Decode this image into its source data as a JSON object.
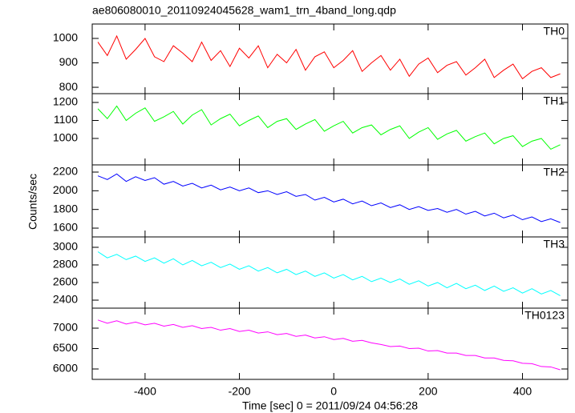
{
  "chart_data": [
    {
      "type": "line",
      "title": "ae806080010_20110924045628_wam1_trn_4band_long.qdp",
      "x": [
        -500,
        -480,
        -460,
        -440,
        -420,
        -400,
        -380,
        -360,
        -340,
        -320,
        -300,
        -280,
        -260,
        -240,
        -220,
        -200,
        -180,
        -160,
        -140,
        -120,
        -100,
        -80,
        -60,
        -40,
        -20,
        0,
        20,
        40,
        60,
        80,
        100,
        120,
        140,
        160,
        180,
        200,
        220,
        240,
        260,
        280,
        300,
        320,
        340,
        360,
        380,
        400,
        420,
        440,
        460,
        480
      ],
      "xlim": [
        -512,
        496
      ],
      "xticks": [
        -400,
        -200,
        0,
        200,
        400
      ],
      "ylim": [
        774,
        1059
      ],
      "yticks": [
        800,
        900,
        1000
      ],
      "series": [
        {
          "name": "TH0",
          "color": "#ff0000",
          "values": [
            985,
            930,
            1010,
            915,
            955,
            1000,
            925,
            905,
            970,
            940,
            905,
            985,
            910,
            950,
            885,
            960,
            920,
            970,
            880,
            935,
            900,
            955,
            870,
            925,
            945,
            880,
            910,
            950,
            865,
            900,
            930,
            870,
            915,
            845,
            895,
            920,
            860,
            890,
            905,
            850,
            880,
            915,
            840,
            870,
            895,
            835,
            865,
            880,
            840,
            855
          ]
        }
      ]
    },
    {
      "type": "line",
      "x": [
        -500,
        -480,
        -460,
        -440,
        -420,
        -400,
        -380,
        -360,
        -340,
        -320,
        -300,
        -280,
        -260,
        -240,
        -220,
        -200,
        -180,
        -160,
        -140,
        -120,
        -100,
        -80,
        -60,
        -40,
        -20,
        0,
        20,
        40,
        60,
        80,
        100,
        120,
        140,
        160,
        180,
        200,
        220,
        240,
        260,
        280,
        300,
        320,
        340,
        360,
        380,
        400,
        420,
        440,
        460,
        480
      ],
      "xlim": [
        -512,
        496
      ],
      "xticks": [
        -400,
        -200,
        0,
        200,
        400
      ],
      "ylim": [
        853,
        1249
      ],
      "yticks": [
        1000,
        1100,
        1200
      ],
      "series": [
        {
          "name": "TH1",
          "color": "#00ff00",
          "values": [
            1165,
            1110,
            1180,
            1100,
            1140,
            1170,
            1095,
            1120,
            1150,
            1080,
            1130,
            1160,
            1075,
            1110,
            1135,
            1070,
            1100,
            1125,
            1060,
            1095,
            1110,
            1050,
            1080,
            1105,
            1040,
            1070,
            1095,
            1030,
            1060,
            1075,
            1020,
            1050,
            1070,
            1000,
            1035,
            1060,
            995,
            1025,
            1045,
            985,
            1010,
            1030,
            970,
            1000,
            1015,
            955,
            985,
            1000,
            940,
            965
          ]
        }
      ]
    },
    {
      "type": "line",
      "ylabel": "Counts/sec",
      "x": [
        -500,
        -480,
        -460,
        -440,
        -420,
        -400,
        -380,
        -360,
        -340,
        -320,
        -300,
        -280,
        -260,
        -240,
        -220,
        -200,
        -180,
        -160,
        -140,
        -120,
        -100,
        -80,
        -60,
        -40,
        -20,
        0,
        20,
        40,
        60,
        80,
        100,
        120,
        140,
        160,
        180,
        200,
        220,
        240,
        260,
        280,
        300,
        320,
        340,
        360,
        380,
        400,
        420,
        440,
        460,
        480
      ],
      "xlim": [
        -512,
        496
      ],
      "xticks": [
        -400,
        -200,
        0,
        200,
        400
      ],
      "ylim": [
        1506,
        2277
      ],
      "yticks": [
        1600,
        1800,
        2000,
        2200
      ],
      "series": [
        {
          "name": "TH2",
          "color": "#0000ff",
          "values": [
            2160,
            2120,
            2180,
            2100,
            2150,
            2110,
            2140,
            2070,
            2100,
            2050,
            2080,
            2030,
            2060,
            2010,
            2040,
            2000,
            2030,
            1980,
            2000,
            1960,
            1990,
            1940,
            1960,
            1900,
            1930,
            1880,
            1910,
            1860,
            1890,
            1840,
            1870,
            1820,
            1850,
            1800,
            1830,
            1790,
            1810,
            1770,
            1800,
            1750,
            1780,
            1730,
            1760,
            1710,
            1740,
            1690,
            1720,
            1670,
            1700,
            1660
          ]
        }
      ]
    },
    {
      "type": "line",
      "x": [
        -500,
        -480,
        -460,
        -440,
        -420,
        -400,
        -380,
        -360,
        -340,
        -320,
        -300,
        -280,
        -260,
        -240,
        -220,
        -200,
        -180,
        -160,
        -140,
        -120,
        -100,
        -80,
        -60,
        -40,
        -20,
        0,
        20,
        40,
        60,
        80,
        100,
        120,
        140,
        160,
        180,
        200,
        220,
        240,
        260,
        280,
        300,
        320,
        340,
        360,
        380,
        400,
        420,
        440,
        460,
        480
      ],
      "xlim": [
        -512,
        496
      ],
      "xticks": [
        -400,
        -200,
        0,
        200,
        400
      ],
      "ylim": [
        2309,
        3118
      ],
      "yticks": [
        2400,
        2600,
        2800,
        3000
      ],
      "series": [
        {
          "name": "TH3",
          "color": "#00ffff",
          "values": [
            2950,
            2880,
            2920,
            2860,
            2900,
            2840,
            2880,
            2820,
            2870,
            2800,
            2850,
            2790,
            2830,
            2770,
            2810,
            2750,
            2790,
            2730,
            2770,
            2710,
            2750,
            2690,
            2730,
            2670,
            2710,
            2650,
            2690,
            2630,
            2670,
            2610,
            2650,
            2600,
            2640,
            2580,
            2620,
            2560,
            2600,
            2540,
            2590,
            2530,
            2570,
            2510,
            2560,
            2500,
            2540,
            2480,
            2530,
            2470,
            2510,
            2450
          ]
        }
      ]
    },
    {
      "type": "line",
      "xlabel": "Time [sec] 0 = 2011/09/24 04:56:28",
      "x": [
        -500,
        -480,
        -460,
        -440,
        -420,
        -400,
        -380,
        -360,
        -340,
        -320,
        -300,
        -280,
        -260,
        -240,
        -220,
        -200,
        -180,
        -160,
        -140,
        -120,
        -100,
        -80,
        -60,
        -40,
        -20,
        0,
        20,
        40,
        60,
        80,
        100,
        120,
        140,
        160,
        180,
        200,
        220,
        240,
        260,
        280,
        300,
        320,
        340,
        360,
        380,
        400,
        420,
        440,
        460,
        480
      ],
      "xlim": [
        -512,
        496
      ],
      "xticks": [
        -400,
        -200,
        0,
        200,
        400
      ],
      "ylim": [
        5745,
        7490
      ],
      "yticks": [
        6000,
        6500,
        7000
      ],
      "series": [
        {
          "name": "TH0123",
          "color": "#ff00ff",
          "values": [
            7200,
            7120,
            7180,
            7100,
            7150,
            7080,
            7120,
            7050,
            7090,
            7020,
            7060,
            6990,
            7020,
            6950,
            6990,
            6920,
            6950,
            6880,
            6910,
            6840,
            6870,
            6800,
            6830,
            6760,
            6790,
            6720,
            6750,
            6680,
            6700,
            6640,
            6600,
            6550,
            6560,
            6500,
            6510,
            6440,
            6450,
            6390,
            6390,
            6330,
            6330,
            6270,
            6270,
            6210,
            6200,
            6140,
            6130,
            6060,
            6050,
            5980
          ]
        }
      ]
    }
  ]
}
